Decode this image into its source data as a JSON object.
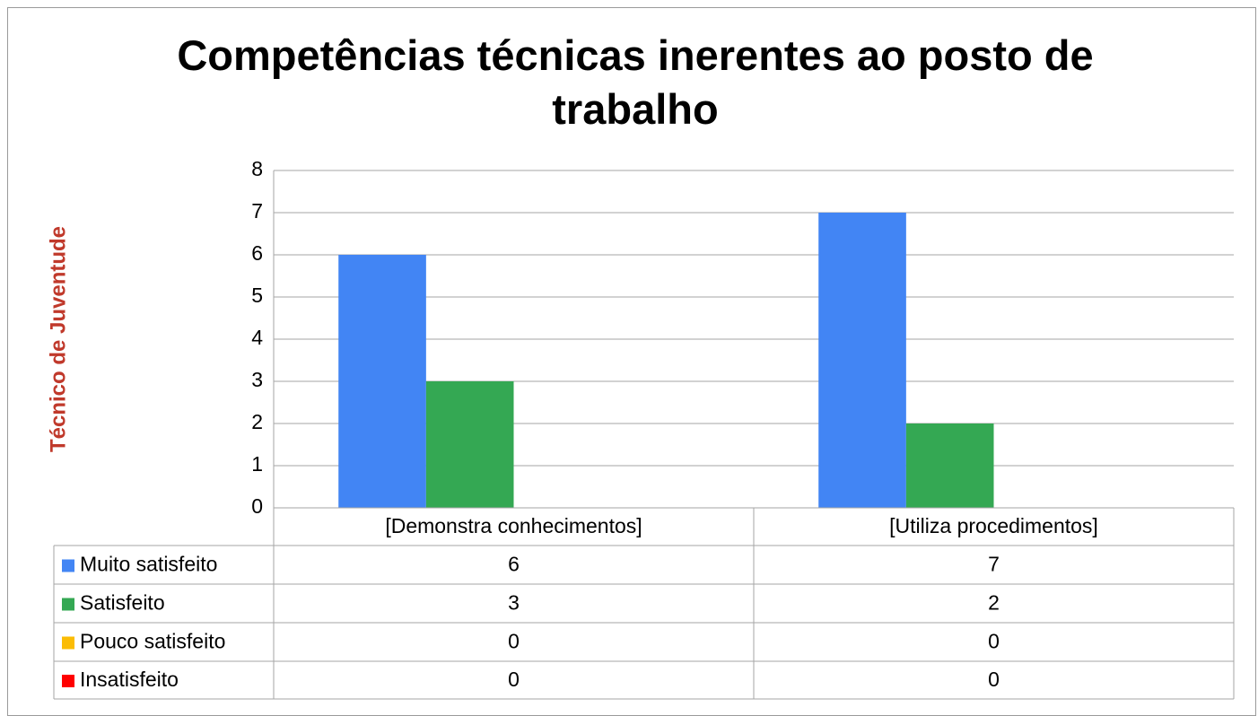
{
  "chart_data": {
    "type": "bar",
    "title": "Competências técnicas inerentes ao posto de trabalho",
    "y_label": "Técnico de Juventude",
    "categories": [
      "[Demonstra conhecimentos]",
      "[Utiliza procedimentos]"
    ],
    "series": [
      {
        "name": "Muito satisfeito",
        "color": "#4285f4",
        "values": [
          6,
          7
        ]
      },
      {
        "name": "Satisfeito",
        "color": "#34a853",
        "values": [
          3,
          2
        ]
      },
      {
        "name": "Pouco satisfeito",
        "color": "#fbbc04",
        "values": [
          0,
          0
        ]
      },
      {
        "name": "Insatisfeito",
        "color": "#ff0000",
        "values": [
          0,
          0
        ]
      }
    ],
    "ylim": [
      0,
      8
    ],
    "yticks": [
      0,
      1,
      2,
      3,
      4,
      5,
      6,
      7,
      8
    ],
    "grid": true,
    "data_table": true
  }
}
